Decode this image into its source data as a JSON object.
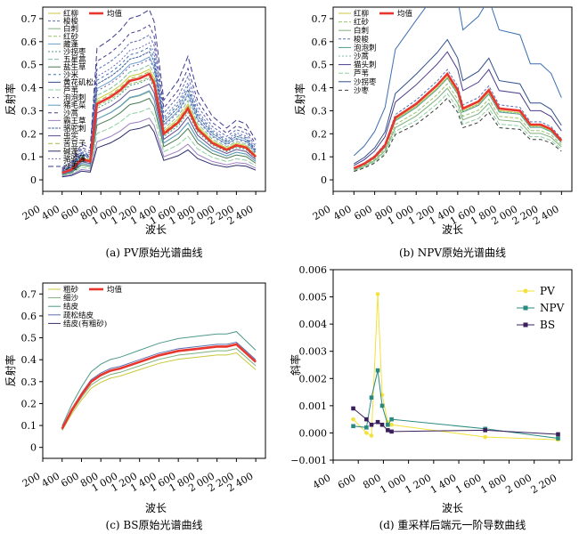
{
  "chart_data": [
    {
      "type": "line",
      "caption": "(a) PV原始光谱曲线",
      "xlabel": "波长",
      "ylabel": "反射率",
      "xlim": [
        200,
        2500
      ],
      "ylim": [
        -0.05,
        0.75
      ],
      "xticks": [
        200,
        400,
        600,
        800,
        1000,
        1200,
        1400,
        1600,
        1800,
        2000,
        2200,
        2400
      ],
      "xtick_labels": [
        "200",
        "400",
        "600",
        "800",
        "1 000",
        "1 200",
        "1 400",
        "1 600",
        "1 800",
        "2 000",
        "2 200",
        "2 400"
      ],
      "yticks": [
        0,
        0.1,
        0.2,
        0.3,
        0.4,
        0.5,
        0.6,
        0.7
      ],
      "ytick_labels": [
        "0",
        "0.1",
        "0.2",
        "0.3",
        "0.4",
        "0.5",
        "0.6",
        "0.7"
      ],
      "grid": false,
      "legend_position": "top-left",
      "x": [
        400,
        500,
        600,
        690,
        760,
        900,
        1000,
        1100,
        1200,
        1300,
        1350,
        1450,
        1600,
        1700,
        1800,
        1950,
        2100,
        2200,
        2300,
        2400
      ],
      "mean": {
        "name": "均值",
        "color": "#e8352d",
        "values": [
          0.03,
          0.045,
          0.09,
          0.08,
          0.33,
          0.36,
          0.39,
          0.43,
          0.44,
          0.46,
          0.42,
          0.2,
          0.25,
          0.31,
          0.22,
          0.16,
          0.13,
          0.15,
          0.14,
          0.1
        ]
      },
      "series": [
        {
          "name": "红柳",
          "color": "#c8c83c",
          "dash": "",
          "offset": 0.02,
          "scale": 1.0
        },
        {
          "name": "梭梭",
          "color": "#5a6fb5",
          "dash": "3,2",
          "offset": 0.1,
          "scale": 1.15
        },
        {
          "name": "白刺",
          "color": "#7fb07f",
          "dash": "",
          "offset": -0.04,
          "scale": 0.92
        },
        {
          "name": "红砂",
          "color": "#9ac26c",
          "dash": "4,2",
          "offset": 0.0,
          "scale": 0.97
        },
        {
          "name": "藏蓬",
          "color": "#6b9fcf",
          "dash": "",
          "offset": 0.05,
          "scale": 1.05
        },
        {
          "name": "沙拐枣",
          "color": "#4f9a8c",
          "dash": "2,2",
          "offset": -0.02,
          "scale": 1.0
        },
        {
          "name": "五星蒿",
          "color": "#7dbf9f",
          "dash": "5,2",
          "offset": 0.03,
          "scale": 1.02
        },
        {
          "name": "盐生草",
          "color": "#4a7a50",
          "dash": "",
          "offset": -0.06,
          "scale": 0.9
        },
        {
          "name": "沙米",
          "color": "#3c6fb0",
          "dash": "3,3",
          "offset": 0.07,
          "scale": 1.1
        },
        {
          "name": "黄花矶松",
          "color": "#2f4f8a",
          "dash": "",
          "offset": 0.0,
          "scale": 1.0
        },
        {
          "name": "芦苇",
          "color": "#8fd0a0",
          "dash": "6,2",
          "offset": -0.08,
          "scale": 0.85
        },
        {
          "name": "泡泡刺",
          "color": "#6f5fa8",
          "dash": "2,3",
          "offset": 0.04,
          "scale": 1.05
        },
        {
          "name": "猪毛菜",
          "color": "#5b9bc4",
          "dash": "",
          "offset": -0.05,
          "scale": 0.95
        },
        {
          "name": "沙蒿",
          "color": "#4b3c8c",
          "dash": "4,3",
          "offset": 0.12,
          "scale": 1.2
        },
        {
          "name": "霸王草",
          "color": "#9b7fc0",
          "dash": "",
          "offset": -0.1,
          "scale": 0.8
        },
        {
          "name": "骆驼刺",
          "color": "#3b5f9a",
          "dash": "3,1",
          "offset": 0.06,
          "scale": 1.08
        },
        {
          "name": "虫实",
          "color": "#5f4b8f",
          "dash": "",
          "offset": -0.03,
          "scale": 0.97
        },
        {
          "name": "苦豆子",
          "color": "#a8b840",
          "dash": "5,3",
          "offset": 0.01,
          "scale": 1.0
        },
        {
          "name": "碱蓬",
          "color": "#2c2c6c",
          "dash": "",
          "offset": -0.12,
          "scale": 0.78
        },
        {
          "name": "骆驼蓬",
          "color": "#6f6fbf",
          "dash": "2,2",
          "offset": 0.08,
          "scale": 1.12
        },
        {
          "name": "沙枣",
          "color": "#3a3a90",
          "dash": "6,3",
          "offset": 0.15,
          "scale": 1.28
        }
      ]
    },
    {
      "type": "line",
      "caption": "(b) NPV原始光谱曲线",
      "xlabel": "波长",
      "ylabel": "反射率",
      "xlim": [
        200,
        2500
      ],
      "ylim": [
        -0.05,
        0.75
      ],
      "xticks": [
        200,
        400,
        600,
        800,
        1000,
        1200,
        1400,
        1600,
        1800,
        2000,
        2200,
        2400
      ],
      "xtick_labels": [
        "200",
        "400",
        "600",
        "800",
        "1 000",
        "1 200",
        "1 400",
        "1 600",
        "1 800",
        "2 000",
        "2 200",
        "2 400"
      ],
      "yticks": [
        0,
        0.1,
        0.2,
        0.3,
        0.4,
        0.5,
        0.6,
        0.7
      ],
      "ytick_labels": [
        "0",
        "0.1",
        "0.2",
        "0.3",
        "0.4",
        "0.5",
        "0.6",
        "0.7"
      ],
      "grid": false,
      "legend_position": "top-left",
      "x": [
        400,
        500,
        600,
        700,
        800,
        900,
        1000,
        1100,
        1200,
        1300,
        1400,
        1450,
        1600,
        1700,
        1800,
        2000,
        2100,
        2200,
        2300,
        2400
      ],
      "mean": {
        "name": "均值",
        "color": "#e8352d",
        "values": [
          0.05,
          0.07,
          0.1,
          0.15,
          0.27,
          0.3,
          0.33,
          0.37,
          0.41,
          0.46,
          0.39,
          0.31,
          0.34,
          0.39,
          0.31,
          0.3,
          0.24,
          0.24,
          0.22,
          0.17
        ]
      },
      "series": [
        {
          "name": "红柳",
          "color": "#c8c83c",
          "dash": "",
          "offset": 0.0,
          "scale": 0.97
        },
        {
          "name": "红砂",
          "color": "#9ac26c",
          "dash": "4,2",
          "offset": -0.02,
          "scale": 0.95
        },
        {
          "name": "白刺",
          "color": "#7fb07f",
          "dash": "",
          "offset": -0.03,
          "scale": 0.93
        },
        {
          "name": "梭梭",
          "color": "#5a6fb5",
          "dash": "3,2",
          "offset": 0.01,
          "scale": 1.02
        },
        {
          "name": "泡泡刺",
          "color": "#4f9a8c",
          "dash": "",
          "offset": -0.01,
          "scale": 0.98
        },
        {
          "name": "沙蒿",
          "color": "#7dbf9f",
          "dash": "2,2",
          "offset": 0.0,
          "scale": 0.96
        },
        {
          "name": "猫头刺",
          "color": "#4b3c8c",
          "dash": "",
          "offset": 0.05,
          "scale": 1.1
        },
        {
          "name": "芦苇",
          "color": "#8fd0a0",
          "dash": "5,2",
          "offset": -0.04,
          "scale": 0.9
        },
        {
          "name": "沙拐枣",
          "color": "#2f4f8a",
          "dash": "",
          "offset": 0.08,
          "scale": 1.15
        },
        {
          "name": "沙枣",
          "color": "#3a3a3a",
          "dash": "4,3",
          "offset": -0.05,
          "scale": 0.88
        },
        {
          "name": "",
          "color": "#3c6fb0",
          "dash": "",
          "offset": 0.2,
          "scale": 1.5
        }
      ]
    },
    {
      "type": "line",
      "caption": "(c) BS原始光谱曲线",
      "xlabel": "波长",
      "ylabel": "反射率",
      "xlim": [
        200,
        2500
      ],
      "ylim": [
        -0.05,
        0.75
      ],
      "xticks": [
        200,
        400,
        600,
        800,
        1000,
        1200,
        1400,
        1600,
        1800,
        2000,
        2200,
        2400
      ],
      "xtick_labels": [
        "200",
        "400",
        "600",
        "800",
        "1 000",
        "1 200",
        "1 400",
        "1 600",
        "1 800",
        "2 000",
        "2 200",
        "2 400"
      ],
      "yticks": [
        0,
        0.1,
        0.2,
        0.3,
        0.4,
        0.5,
        0.6,
        0.7
      ],
      "ytick_labels": [
        "0",
        "0.1",
        "0.2",
        "0.3",
        "0.4",
        "0.5",
        "0.6",
        "0.7"
      ],
      "grid": false,
      "legend_position": "top-left",
      "x": [
        400,
        500,
        600,
        700,
        800,
        900,
        1000,
        1200,
        1400,
        1600,
        1800,
        2000,
        2100,
        2200,
        2300,
        2400
      ],
      "mean": {
        "name": "均值",
        "color": "#e8352d",
        "values": [
          0.085,
          0.17,
          0.24,
          0.3,
          0.33,
          0.35,
          0.36,
          0.39,
          0.42,
          0.44,
          0.45,
          0.46,
          0.46,
          0.47,
          0.43,
          0.39
        ]
      },
      "series": [
        {
          "name": "粗砂",
          "color": "#c8c83c",
          "dash": "",
          "offset": -0.02,
          "scale": 0.96
        },
        {
          "name": "细沙",
          "color": "#7fb07f",
          "dash": "",
          "offset": -0.01,
          "scale": 0.98
        },
        {
          "name": "结皮",
          "color": "#4f9a8c",
          "dash": "",
          "offset": 0.03,
          "scale": 1.06
        },
        {
          "name": "疏松结皮",
          "color": "#5a6fb5",
          "dash": "",
          "offset": 0.01,
          "scale": 1.0
        },
        {
          "name": "结皮(有粗砂)",
          "color": "#3a2f6a",
          "dash": "",
          "offset": 0.005,
          "scale": 0.99
        }
      ]
    },
    {
      "type": "line",
      "caption": "(d) 重采样后端元一阶导数曲线",
      "xlabel": "波长",
      "ylabel": "斜率",
      "xlim": [
        400,
        2300
      ],
      "ylim": [
        -0.001,
        0.006
      ],
      "xticks": [
        400,
        600,
        800,
        1000,
        1200,
        1400,
        1600,
        1800,
        2000,
        2200
      ],
      "xtick_labels": [
        "400",
        "600",
        "800",
        "1 000",
        "1 200",
        "1 400",
        "1 600",
        "1 800",
        "2 000",
        "2 200"
      ],
      "yticks": [
        -0.001,
        0,
        0.001,
        0.002,
        0.003,
        0.004,
        0.005,
        0.006
      ],
      "ytick_labels": [
        "−0.001",
        "0.000",
        "0.001",
        "0.002",
        "0.003",
        "0.004",
        "0.005",
        "0.006"
      ],
      "grid": false,
      "legend_position": "top-right",
      "series": [
        {
          "name": "PV",
          "color": "#f3e23a",
          "marker": "circle",
          "x": [
            560,
            665,
            705,
            755,
            790,
            835,
            865,
            1610,
            2190
          ],
          "y": [
            0.0005,
            0.0,
            -0.0001,
            0.0051,
            0.0014,
            0.0004,
            0.0003,
            -0.00015,
            -0.00025
          ]
        },
        {
          "name": "NPV",
          "color": "#2a8a80",
          "marker": "square",
          "x": [
            560,
            665,
            705,
            755,
            790,
            835,
            865,
            1610,
            2190
          ],
          "y": [
            0.00025,
            0.0002,
            0.0013,
            0.0023,
            0.001,
            0.0003,
            0.0005,
            0.00015,
            -0.0002
          ]
        },
        {
          "name": "BS",
          "color": "#3b1f5c",
          "marker": "square",
          "x": [
            560,
            665,
            705,
            755,
            790,
            835,
            865,
            1610,
            2190
          ],
          "y": [
            0.0009,
            0.0005,
            0.0003,
            0.0004,
            0.0003,
            0.0001,
            5e-05,
            0.0001,
            -5e-05
          ]
        }
      ]
    }
  ]
}
